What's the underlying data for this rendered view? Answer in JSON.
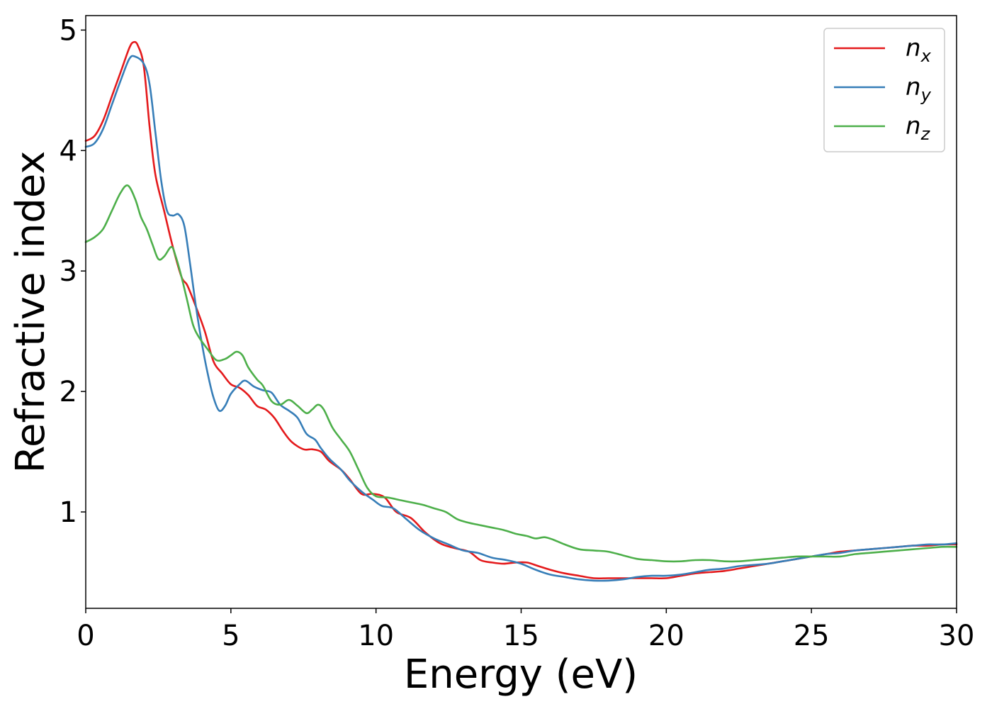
{
  "chart_data": {
    "type": "line",
    "title": "",
    "xlabel": "Energy (eV)",
    "ylabel": "Refractive index",
    "xlim": [
      0,
      30
    ],
    "ylim": [
      0.2,
      5.12
    ],
    "xticks": [
      0,
      5,
      10,
      15,
      20,
      25,
      30
    ],
    "xtick_labels": [
      "0",
      "5",
      "10",
      "15",
      "20",
      "25",
      "30"
    ],
    "yticks": [
      1,
      2,
      3,
      4,
      5
    ],
    "ytick_labels": [
      "1",
      "2",
      "3",
      "4",
      "5"
    ],
    "grid": false,
    "legend_position": "top-right",
    "series": [
      {
        "name": "n",
        "subscript": "x",
        "color": "#e41a1c",
        "points": [
          [
            0,
            4.08
          ],
          [
            0.3,
            4.12
          ],
          [
            0.6,
            4.25
          ],
          [
            0.9,
            4.45
          ],
          [
            1.2,
            4.65
          ],
          [
            1.5,
            4.85
          ],
          [
            1.65,
            4.9
          ],
          [
            1.8,
            4.87
          ],
          [
            2.0,
            4.7
          ],
          [
            2.2,
            4.2
          ],
          [
            2.4,
            3.8
          ],
          [
            2.7,
            3.5
          ],
          [
            3.0,
            3.2
          ],
          [
            3.3,
            2.95
          ],
          [
            3.5,
            2.88
          ],
          [
            3.8,
            2.7
          ],
          [
            4.1,
            2.5
          ],
          [
            4.4,
            2.25
          ],
          [
            4.7,
            2.15
          ],
          [
            5.0,
            2.06
          ],
          [
            5.3,
            2.03
          ],
          [
            5.6,
            1.97
          ],
          [
            5.9,
            1.88
          ],
          [
            6.2,
            1.85
          ],
          [
            6.5,
            1.78
          ],
          [
            6.8,
            1.67
          ],
          [
            7.1,
            1.58
          ],
          [
            7.5,
            1.52
          ],
          [
            7.8,
            1.52
          ],
          [
            8.1,
            1.5
          ],
          [
            8.4,
            1.42
          ],
          [
            8.8,
            1.35
          ],
          [
            9.1,
            1.27
          ],
          [
            9.5,
            1.15
          ],
          [
            9.9,
            1.15
          ],
          [
            10.3,
            1.12
          ],
          [
            10.7,
            1.0
          ],
          [
            11.2,
            0.95
          ],
          [
            11.7,
            0.83
          ],
          [
            12.2,
            0.74
          ],
          [
            12.7,
            0.7
          ],
          [
            13.2,
            0.67
          ],
          [
            13.6,
            0.6
          ],
          [
            14.0,
            0.58
          ],
          [
            14.4,
            0.57
          ],
          [
            14.8,
            0.58
          ],
          [
            15.2,
            0.58
          ],
          [
            15.6,
            0.55
          ],
          [
            16.0,
            0.52
          ],
          [
            16.5,
            0.49
          ],
          [
            17.0,
            0.47
          ],
          [
            17.5,
            0.45
          ],
          [
            18.0,
            0.45
          ],
          [
            18.5,
            0.45
          ],
          [
            19.0,
            0.45
          ],
          [
            19.5,
            0.45
          ],
          [
            20.0,
            0.45
          ],
          [
            20.5,
            0.47
          ],
          [
            21.0,
            0.49
          ],
          [
            21.5,
            0.5
          ],
          [
            22.0,
            0.51
          ],
          [
            22.5,
            0.53
          ],
          [
            23.0,
            0.55
          ],
          [
            23.5,
            0.57
          ],
          [
            24.0,
            0.59
          ],
          [
            24.5,
            0.61
          ],
          [
            25.0,
            0.63
          ],
          [
            25.5,
            0.65
          ],
          [
            26.0,
            0.67
          ],
          [
            26.5,
            0.68
          ],
          [
            27.0,
            0.69
          ],
          [
            27.5,
            0.7
          ],
          [
            28.0,
            0.71
          ],
          [
            28.5,
            0.72
          ],
          [
            29.0,
            0.72
          ],
          [
            29.5,
            0.73
          ],
          [
            30.0,
            0.73
          ]
        ]
      },
      {
        "name": "n",
        "subscript": "y",
        "color": "#377eb8",
        "points": [
          [
            0,
            4.03
          ],
          [
            0.3,
            4.06
          ],
          [
            0.6,
            4.18
          ],
          [
            0.9,
            4.38
          ],
          [
            1.2,
            4.58
          ],
          [
            1.5,
            4.76
          ],
          [
            1.7,
            4.78
          ],
          [
            2.0,
            4.72
          ],
          [
            2.2,
            4.55
          ],
          [
            2.4,
            4.15
          ],
          [
            2.6,
            3.75
          ],
          [
            2.8,
            3.5
          ],
          [
            3.0,
            3.46
          ],
          [
            3.2,
            3.47
          ],
          [
            3.4,
            3.37
          ],
          [
            3.6,
            3.05
          ],
          [
            3.8,
            2.7
          ],
          [
            4.0,
            2.4
          ],
          [
            4.2,
            2.15
          ],
          [
            4.4,
            1.95
          ],
          [
            4.6,
            1.84
          ],
          [
            4.8,
            1.88
          ],
          [
            5.0,
            1.98
          ],
          [
            5.3,
            2.06
          ],
          [
            5.5,
            2.09
          ],
          [
            5.8,
            2.04
          ],
          [
            6.1,
            2.01
          ],
          [
            6.4,
            1.99
          ],
          [
            6.7,
            1.89
          ],
          [
            7.0,
            1.84
          ],
          [
            7.3,
            1.78
          ],
          [
            7.6,
            1.65
          ],
          [
            7.9,
            1.6
          ],
          [
            8.1,
            1.53
          ],
          [
            8.4,
            1.44
          ],
          [
            8.8,
            1.35
          ],
          [
            9.1,
            1.26
          ],
          [
            9.5,
            1.17
          ],
          [
            9.9,
            1.1
          ],
          [
            10.2,
            1.05
          ],
          [
            10.6,
            1.03
          ],
          [
            11.0,
            0.95
          ],
          [
            11.5,
            0.85
          ],
          [
            12.0,
            0.78
          ],
          [
            12.5,
            0.73
          ],
          [
            13.0,
            0.68
          ],
          [
            13.5,
            0.66
          ],
          [
            14.0,
            0.62
          ],
          [
            14.5,
            0.6
          ],
          [
            15.0,
            0.57
          ],
          [
            15.5,
            0.52
          ],
          [
            16.0,
            0.48
          ],
          [
            16.5,
            0.46
          ],
          [
            17.0,
            0.44
          ],
          [
            17.5,
            0.43
          ],
          [
            18.0,
            0.43
          ],
          [
            18.5,
            0.44
          ],
          [
            19.0,
            0.46
          ],
          [
            19.5,
            0.47
          ],
          [
            20.0,
            0.47
          ],
          [
            20.5,
            0.48
          ],
          [
            21.0,
            0.5
          ],
          [
            21.5,
            0.52
          ],
          [
            22.0,
            0.53
          ],
          [
            22.5,
            0.55
          ],
          [
            23.0,
            0.56
          ],
          [
            23.5,
            0.57
          ],
          [
            24.0,
            0.59
          ],
          [
            24.5,
            0.61
          ],
          [
            25.0,
            0.63
          ],
          [
            25.5,
            0.65
          ],
          [
            26.0,
            0.66
          ],
          [
            26.5,
            0.68
          ],
          [
            27.0,
            0.69
          ],
          [
            27.5,
            0.7
          ],
          [
            28.0,
            0.71
          ],
          [
            28.5,
            0.72
          ],
          [
            29.0,
            0.73
          ],
          [
            29.5,
            0.73
          ],
          [
            30.0,
            0.74
          ]
        ]
      },
      {
        "name": "n",
        "subscript": "z",
        "color": "#4daf4a",
        "points": [
          [
            0,
            3.24
          ],
          [
            0.3,
            3.28
          ],
          [
            0.6,
            3.35
          ],
          [
            0.9,
            3.5
          ],
          [
            1.2,
            3.65
          ],
          [
            1.45,
            3.71
          ],
          [
            1.7,
            3.6
          ],
          [
            1.9,
            3.45
          ],
          [
            2.1,
            3.35
          ],
          [
            2.3,
            3.22
          ],
          [
            2.5,
            3.1
          ],
          [
            2.7,
            3.12
          ],
          [
            2.95,
            3.2
          ],
          [
            3.1,
            3.12
          ],
          [
            3.3,
            2.95
          ],
          [
            3.5,
            2.75
          ],
          [
            3.7,
            2.55
          ],
          [
            3.9,
            2.45
          ],
          [
            4.2,
            2.35
          ],
          [
            4.5,
            2.26
          ],
          [
            4.8,
            2.27
          ],
          [
            5.0,
            2.3
          ],
          [
            5.2,
            2.33
          ],
          [
            5.4,
            2.3
          ],
          [
            5.6,
            2.2
          ],
          [
            5.9,
            2.1
          ],
          [
            6.1,
            2.05
          ],
          [
            6.4,
            1.92
          ],
          [
            6.7,
            1.89
          ],
          [
            7.0,
            1.93
          ],
          [
            7.3,
            1.88
          ],
          [
            7.6,
            1.82
          ],
          [
            7.8,
            1.85
          ],
          [
            8.0,
            1.89
          ],
          [
            8.2,
            1.85
          ],
          [
            8.5,
            1.7
          ],
          [
            8.8,
            1.6
          ],
          [
            9.1,
            1.5
          ],
          [
            9.4,
            1.35
          ],
          [
            9.7,
            1.2
          ],
          [
            10.0,
            1.13
          ],
          [
            10.4,
            1.12
          ],
          [
            10.8,
            1.1
          ],
          [
            11.2,
            1.08
          ],
          [
            11.6,
            1.06
          ],
          [
            12.0,
            1.03
          ],
          [
            12.4,
            1.0
          ],
          [
            12.8,
            0.94
          ],
          [
            13.2,
            0.91
          ],
          [
            13.6,
            0.89
          ],
          [
            14.0,
            0.87
          ],
          [
            14.4,
            0.85
          ],
          [
            14.8,
            0.82
          ],
          [
            15.2,
            0.8
          ],
          [
            15.5,
            0.78
          ],
          [
            15.8,
            0.79
          ],
          [
            16.1,
            0.77
          ],
          [
            16.5,
            0.73
          ],
          [
            17.0,
            0.69
          ],
          [
            17.5,
            0.68
          ],
          [
            18.0,
            0.67
          ],
          [
            18.5,
            0.64
          ],
          [
            19.0,
            0.61
          ],
          [
            19.5,
            0.6
          ],
          [
            20.0,
            0.59
          ],
          [
            20.5,
            0.59
          ],
          [
            21.0,
            0.6
          ],
          [
            21.5,
            0.6
          ],
          [
            22.0,
            0.59
          ],
          [
            22.5,
            0.59
          ],
          [
            23.0,
            0.6
          ],
          [
            23.5,
            0.61
          ],
          [
            24.0,
            0.62
          ],
          [
            24.5,
            0.63
          ],
          [
            25.0,
            0.63
          ],
          [
            25.5,
            0.63
          ],
          [
            26.0,
            0.63
          ],
          [
            26.5,
            0.65
          ],
          [
            27.0,
            0.66
          ],
          [
            27.5,
            0.67
          ],
          [
            28.0,
            0.68
          ],
          [
            28.5,
            0.69
          ],
          [
            29.0,
            0.7
          ],
          [
            29.5,
            0.71
          ],
          [
            30.0,
            0.71
          ]
        ]
      }
    ]
  }
}
